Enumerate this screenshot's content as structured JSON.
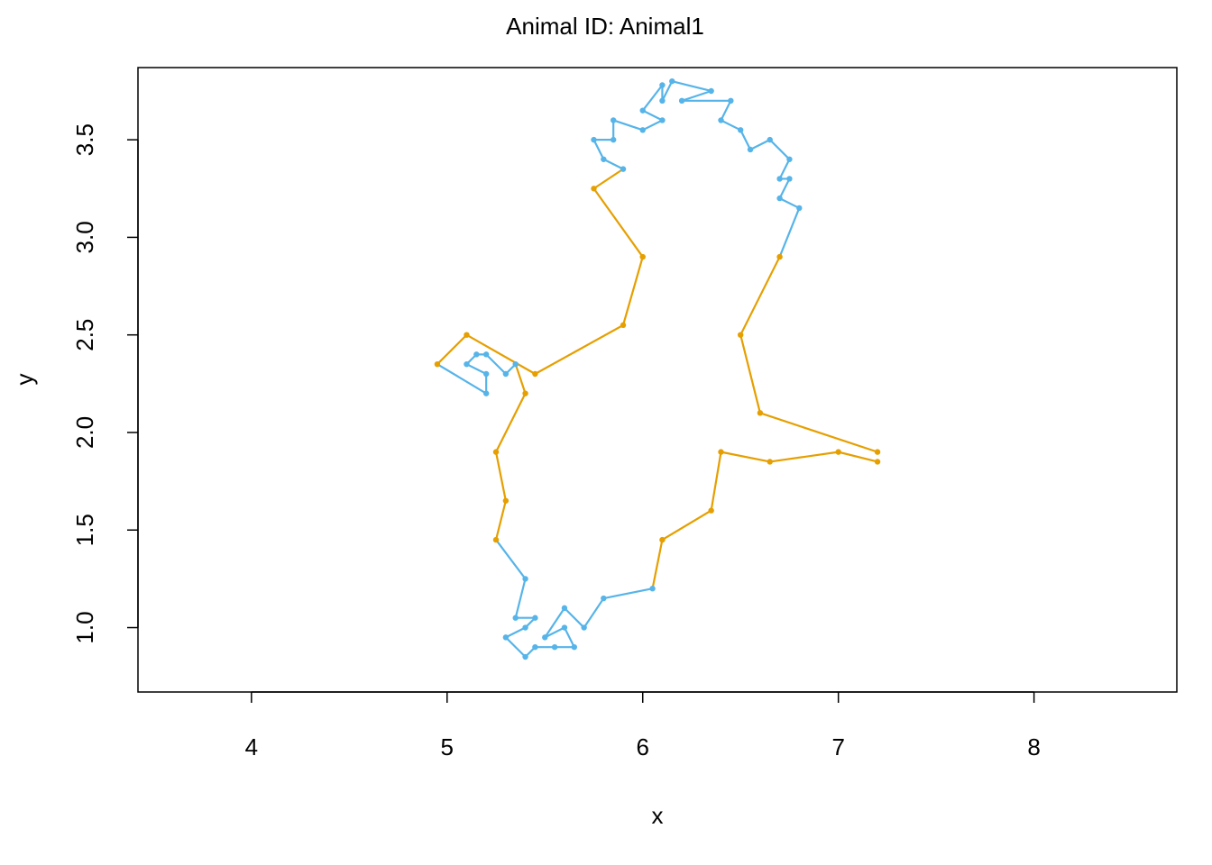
{
  "chart_data": {
    "type": "line",
    "title": "Animal ID: Animal1",
    "xlabel": "x",
    "ylabel": "y",
    "xlim": [
      3.42,
      8.73
    ],
    "ylim": [
      0.67,
      3.87
    ],
    "x_ticks": [
      "4",
      "5",
      "6",
      "7",
      "8"
    ],
    "y_ticks": [
      "1.0",
      "1.5",
      "2.0",
      "2.5",
      "3.0",
      "3.5"
    ],
    "colors": {
      "blue": "#56B4E9",
      "orange": "#E69F00"
    },
    "points": [
      [
        7.2,
        1.85,
        "orange"
      ],
      [
        7.0,
        1.9,
        "orange"
      ],
      [
        6.65,
        1.85,
        "orange"
      ],
      [
        6.4,
        1.9,
        "orange"
      ],
      [
        6.35,
        1.6,
        "orange"
      ],
      [
        6.1,
        1.45,
        "orange"
      ],
      [
        6.05,
        1.2,
        "blue"
      ],
      [
        5.8,
        1.15,
        "blue"
      ],
      [
        5.7,
        1.0,
        "blue"
      ],
      [
        5.6,
        1.1,
        "blue"
      ],
      [
        5.5,
        0.95,
        "blue"
      ],
      [
        5.6,
        1.0,
        "blue"
      ],
      [
        5.65,
        0.9,
        "blue"
      ],
      [
        5.55,
        0.9,
        "blue"
      ],
      [
        5.45,
        0.9,
        "blue"
      ],
      [
        5.4,
        0.85,
        "blue"
      ],
      [
        5.3,
        0.95,
        "blue"
      ],
      [
        5.4,
        1.0,
        "blue"
      ],
      [
        5.45,
        1.05,
        "blue"
      ],
      [
        5.35,
        1.05,
        "blue"
      ],
      [
        5.4,
        1.25,
        "blue"
      ],
      [
        5.25,
        1.45,
        "orange"
      ],
      [
        5.3,
        1.65,
        "orange"
      ],
      [
        5.25,
        1.9,
        "orange"
      ],
      [
        5.4,
        2.2,
        "orange"
      ],
      [
        5.35,
        2.35,
        "blue"
      ],
      [
        5.3,
        2.3,
        "blue"
      ],
      [
        5.2,
        2.4,
        "blue"
      ],
      [
        5.15,
        2.4,
        "blue"
      ],
      [
        5.1,
        2.35,
        "blue"
      ],
      [
        5.2,
        2.3,
        "blue"
      ],
      [
        5.2,
        2.2,
        "blue"
      ],
      [
        4.95,
        2.35,
        "orange"
      ],
      [
        5.1,
        2.5,
        "orange"
      ],
      [
        5.45,
        2.3,
        "orange"
      ],
      [
        5.9,
        2.55,
        "orange"
      ],
      [
        6.0,
        2.9,
        "orange"
      ],
      [
        5.75,
        3.25,
        "orange"
      ],
      [
        5.9,
        3.35,
        "blue"
      ],
      [
        5.8,
        3.4,
        "blue"
      ],
      [
        5.75,
        3.5,
        "blue"
      ],
      [
        5.85,
        3.5,
        "blue"
      ],
      [
        5.85,
        3.6,
        "blue"
      ],
      [
        6.0,
        3.55,
        "blue"
      ],
      [
        6.1,
        3.6,
        "blue"
      ],
      [
        6.0,
        3.65,
        "blue"
      ],
      [
        6.1,
        3.78,
        "blue"
      ],
      [
        6.1,
        3.7,
        "blue"
      ],
      [
        6.15,
        3.8,
        "blue"
      ],
      [
        6.35,
        3.75,
        "blue"
      ],
      [
        6.2,
        3.7,
        "blue"
      ],
      [
        6.45,
        3.7,
        "blue"
      ],
      [
        6.4,
        3.6,
        "blue"
      ],
      [
        6.5,
        3.55,
        "blue"
      ],
      [
        6.55,
        3.45,
        "blue"
      ],
      [
        6.65,
        3.5,
        "blue"
      ],
      [
        6.75,
        3.4,
        "blue"
      ],
      [
        6.7,
        3.3,
        "blue"
      ],
      [
        6.75,
        3.3,
        "blue"
      ],
      [
        6.7,
        3.2,
        "blue"
      ],
      [
        6.8,
        3.15,
        "blue"
      ],
      [
        6.7,
        2.9,
        "orange"
      ],
      [
        6.5,
        2.5,
        "orange"
      ],
      [
        6.6,
        2.1,
        "orange"
      ],
      [
        7.2,
        1.9,
        "orange"
      ]
    ]
  }
}
